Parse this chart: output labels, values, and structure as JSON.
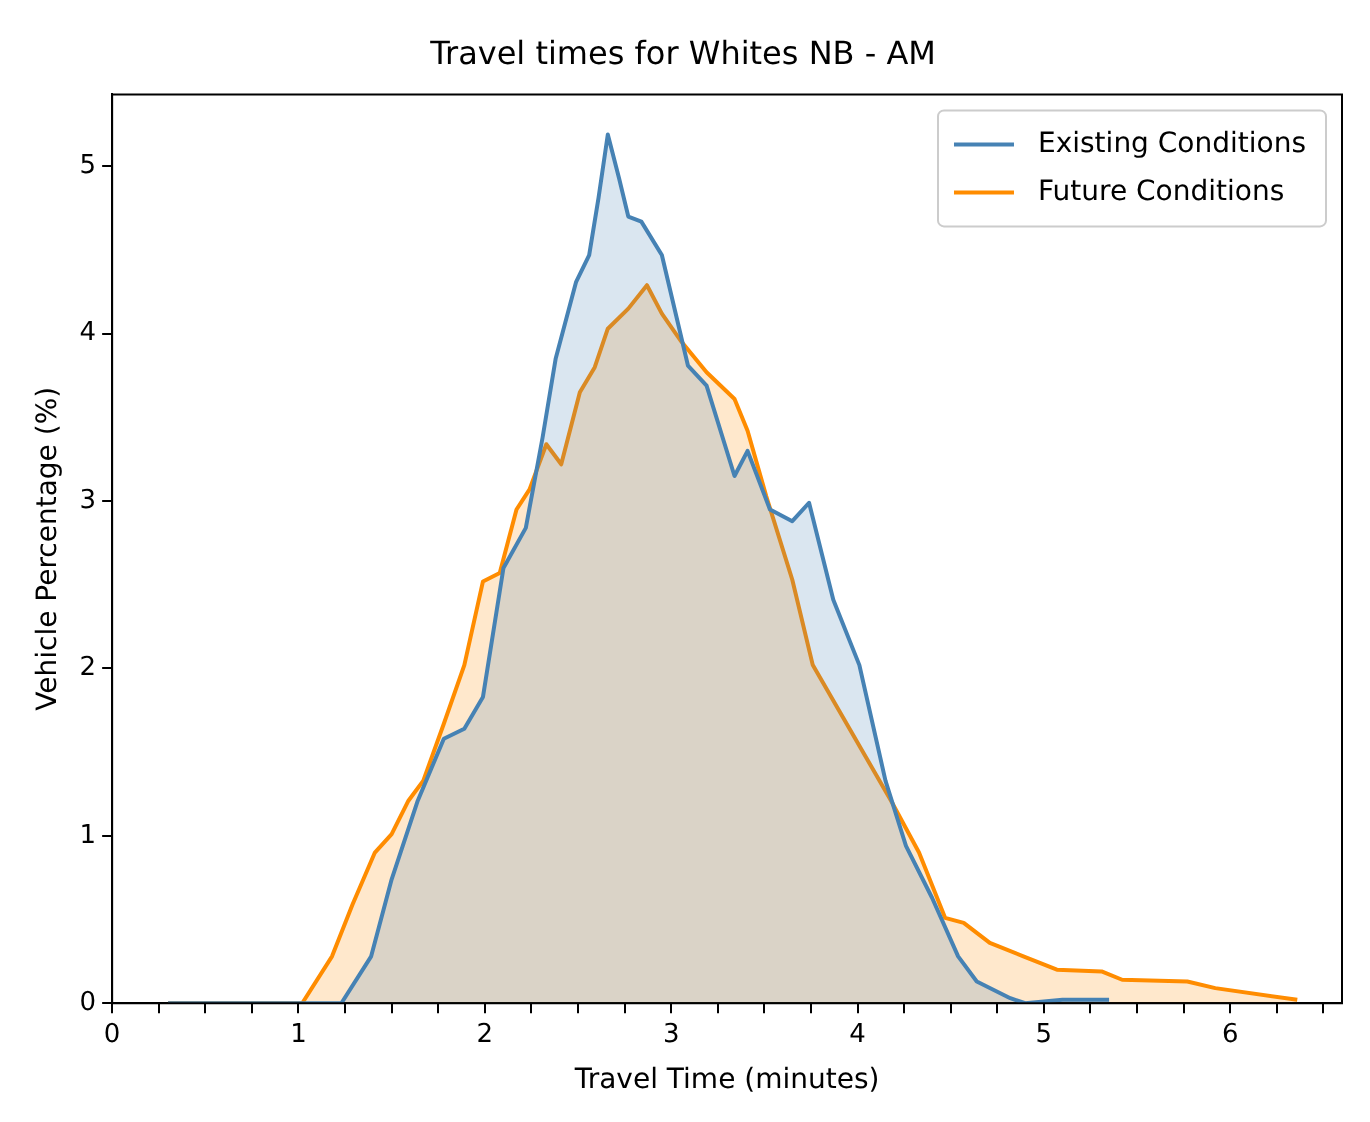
{
  "chart_data": {
    "type": "area",
    "title": "Travel times for Whites NB - AM",
    "xlabel": "Travel Time (minutes)",
    "ylabel": "Vehicle Percentage (%)",
    "xlim": [
      0,
      6.6
    ],
    "ylim": [
      0,
      5.43
    ],
    "xticks": [
      0,
      {
        "value": 0.25,
        "label": null
      },
      {
        "value": 0.5,
        "label": null
      },
      {
        "value": 0.75,
        "label": null
      },
      1,
      {
        "value": 1.25,
        "label": null
      },
      {
        "value": 1.5,
        "label": null
      },
      {
        "value": 1.75,
        "label": null
      },
      2,
      {
        "value": 2.25,
        "label": null
      },
      {
        "value": 2.5,
        "label": null
      },
      {
        "value": 2.75,
        "label": null
      },
      3,
      {
        "value": 3.25,
        "label": null
      },
      {
        "value": 3.5,
        "label": null
      },
      {
        "value": 3.75,
        "label": null
      },
      4,
      {
        "value": 4.25,
        "label": null
      },
      {
        "value": 4.5,
        "label": null
      },
      {
        "value": 4.75,
        "label": null
      },
      5,
      {
        "value": 5.25,
        "label": null
      },
      {
        "value": 5.5,
        "label": null
      },
      {
        "value": 5.75,
        "label": null
      },
      6,
      {
        "value": 6.25,
        "label": null
      },
      {
        "value": 6.5,
        "label": null
      }
    ],
    "yticks": [
      0,
      1,
      2,
      3,
      4,
      5
    ],
    "grid": false,
    "legend": "top right",
    "series": [
      {
        "name": "Existing Conditions",
        "color": "#4682b4",
        "x": [
          0.3,
          1.0,
          1.23,
          1.39,
          1.5,
          1.64,
          1.78,
          1.89,
          1.99,
          2.1,
          2.22,
          2.31,
          2.38,
          2.49,
          2.56,
          2.61,
          2.66,
          2.72,
          2.77,
          2.84,
          2.95,
          3.09,
          3.19,
          3.34,
          3.41,
          3.53,
          3.65,
          3.74,
          3.87,
          4.01,
          4.15,
          4.26,
          4.4,
          4.54,
          4.64,
          4.82,
          4.9,
          5.1,
          5.35
        ],
        "values": [
          0,
          0,
          0,
          0.28,
          0.74,
          1.21,
          1.58,
          1.64,
          1.83,
          2.6,
          2.84,
          3.38,
          3.85,
          4.31,
          4.47,
          4.81,
          5.19,
          4.93,
          4.7,
          4.67,
          4.47,
          3.81,
          3.69,
          3.15,
          3.3,
          2.95,
          2.88,
          2.99,
          2.41,
          2.02,
          1.33,
          0.94,
          0.63,
          0.28,
          0.13,
          0.03,
          0,
          0.02,
          0.02
        ]
      },
      {
        "name": "Future Conditions",
        "color": "#ff8c00",
        "x": [
          0.3,
          0.8,
          1.02,
          1.18,
          1.29,
          1.41,
          1.5,
          1.59,
          1.67,
          1.78,
          1.89,
          1.99,
          2.08,
          2.17,
          2.24,
          2.33,
          2.41,
          2.51,
          2.59,
          2.66,
          2.77,
          2.87,
          2.95,
          3.05,
          3.19,
          3.34,
          3.41,
          3.51,
          3.65,
          3.76,
          3.9,
          4.04,
          4.18,
          4.33,
          4.47,
          4.57,
          4.71,
          4.89,
          5.07,
          5.31,
          5.42,
          5.77,
          5.92,
          6.36
        ],
        "values": [
          0,
          0,
          0,
          0.28,
          0.59,
          0.9,
          1.01,
          1.21,
          1.33,
          1.67,
          2.02,
          2.52,
          2.57,
          2.95,
          3.07,
          3.34,
          3.22,
          3.65,
          3.8,
          4.03,
          4.15,
          4.29,
          4.12,
          3.96,
          3.77,
          3.61,
          3.42,
          3.03,
          2.53,
          2.02,
          1.75,
          1.48,
          1.21,
          0.9,
          0.51,
          0.48,
          0.36,
          0.28,
          0.2,
          0.19,
          0.14,
          0.13,
          0.09,
          0.02
        ]
      }
    ]
  }
}
